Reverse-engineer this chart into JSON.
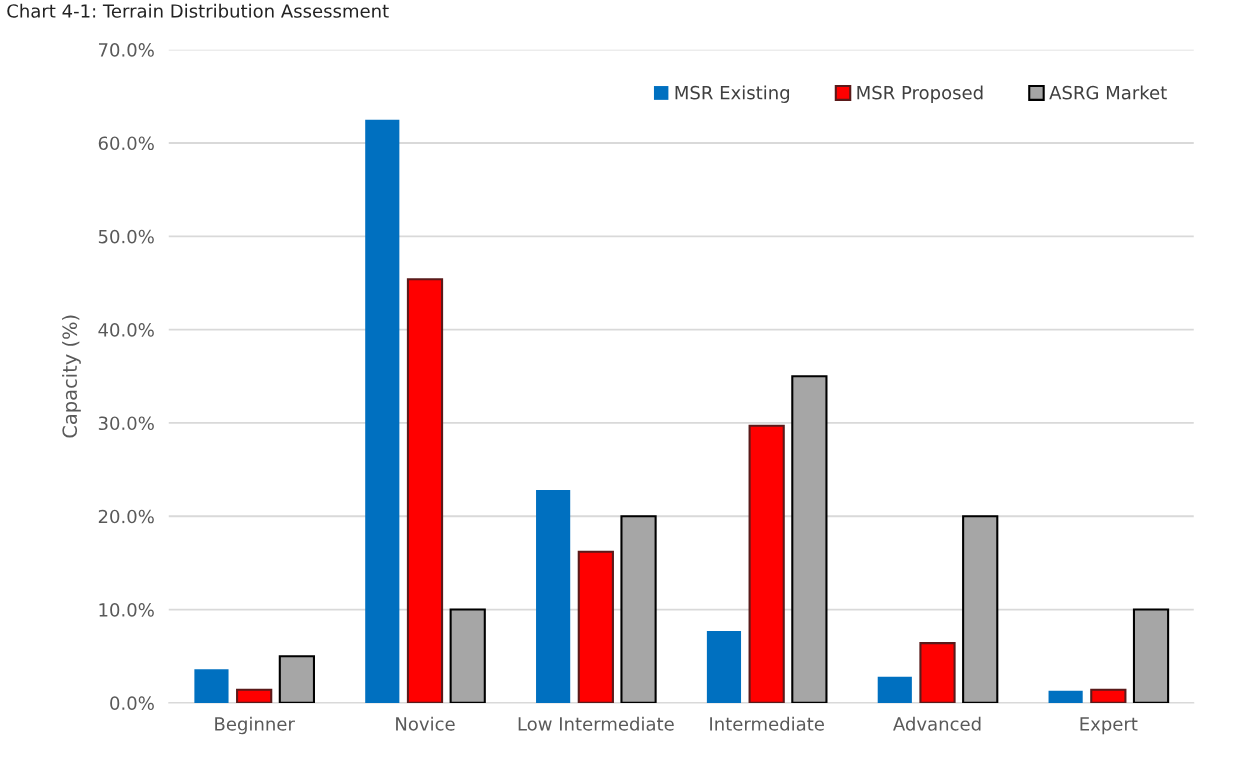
{
  "chart_data": {
    "type": "bar",
    "title": "Chart 4-1: Terrain Distribution Assessment",
    "ylabel": "Capacity (%)",
    "categories": [
      "Beginner",
      "Novice",
      "Low Intermediate",
      "Intermediate",
      "Advanced",
      "Expert"
    ],
    "series": [
      {
        "name": "MSR Existing",
        "color": "#0070c0",
        "values": [
          3.6,
          62.5,
          22.8,
          7.7,
          2.8,
          1.3
        ]
      },
      {
        "name": "MSR Proposed",
        "color": "#ff0000",
        "values": [
          1.4,
          45.4,
          16.2,
          29.7,
          6.4,
          1.4
        ]
      },
      {
        "name": "ASRG Market",
        "color": "#a6a6a6",
        "values": [
          5.0,
          10.0,
          20.0,
          35.0,
          20.0,
          10.0
        ]
      }
    ],
    "ylim": [
      0,
      70
    ],
    "yticks": [
      {
        "value": 0,
        "label": "0.0%"
      },
      {
        "value": 10,
        "label": "10.0%"
      },
      {
        "value": 20,
        "label": "20.0%"
      },
      {
        "value": 30,
        "label": "30.0%"
      },
      {
        "value": 40,
        "label": "40.0%"
      },
      {
        "value": 50,
        "label": "50.0%"
      },
      {
        "value": 60,
        "label": "60.0%"
      },
      {
        "value": 70,
        "label": "70.0%"
      }
    ],
    "grid": "y",
    "legend": "top right"
  }
}
